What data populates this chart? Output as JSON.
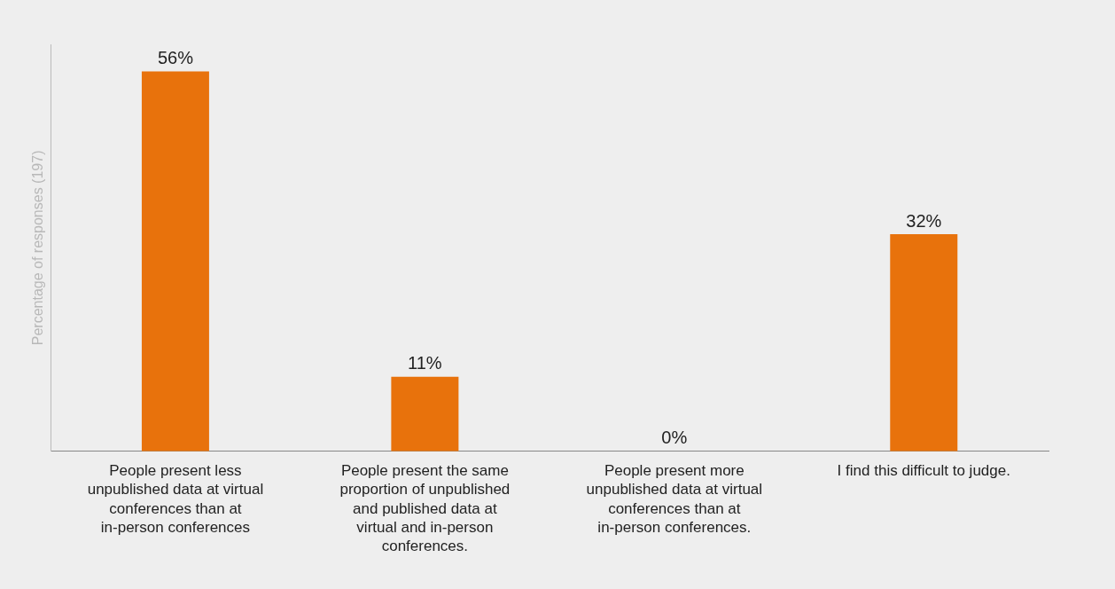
{
  "chart_data": {
    "type": "bar",
    "ylabel": "Percentage of responses (197)",
    "categories": [
      "People present less unpublished data at virtual conferences than at in-person conferences",
      "People present the same proportion of unpublished and published data at virtual and in-person conferences.",
      "People present more unpublished data at virtual conferences than at in-person conferences.",
      "I find this difficult to judge."
    ],
    "values": [
      56,
      11,
      0,
      32
    ],
    "color": "#e8720c",
    "value_labels": [
      "56%",
      "11%",
      "0%",
      "32%"
    ],
    "tick_labels": "x",
    "grid": false,
    "legend": false
  }
}
